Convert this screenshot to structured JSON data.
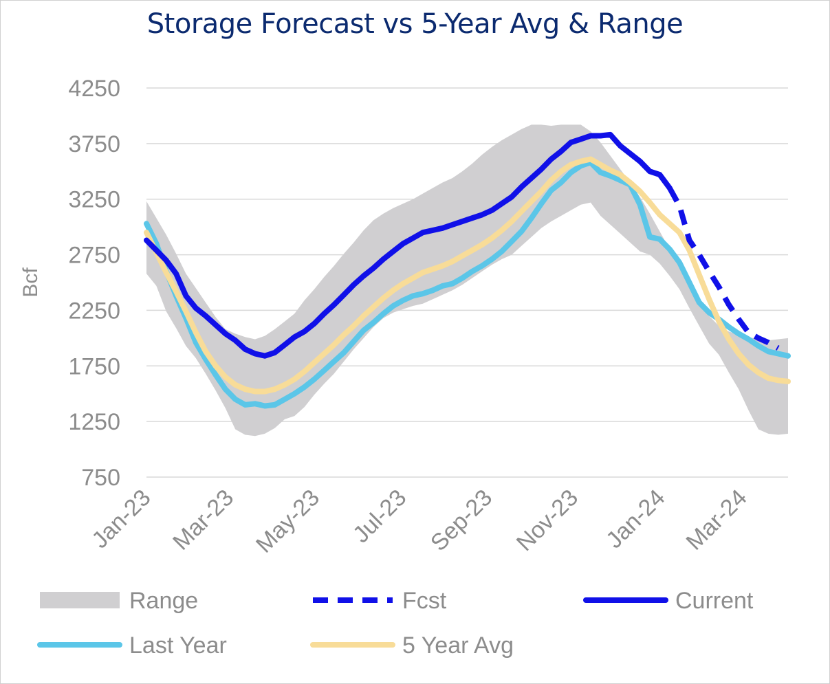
{
  "chart_data": {
    "type": "line",
    "title": "Storage Forecast vs 5-Year Avg & Range",
    "xlabel": "",
    "ylabel": "Bcf",
    "ylim": [
      750,
      4250
    ],
    "yticks": [
      750,
      1250,
      1750,
      2250,
      2750,
      3250,
      3750,
      4250
    ],
    "x_range": [
      0,
      65
    ],
    "x_unit": "weeks since Jan-23",
    "xticks": [
      {
        "label": "Jan-23",
        "x": 0
      },
      {
        "label": "Mar-23",
        "x": 8.4
      },
      {
        "label": "May-23",
        "x": 17.1
      },
      {
        "label": "Jul-23",
        "x": 25.9
      },
      {
        "label": "Sep-23",
        "x": 34.6
      },
      {
        "label": "Nov-23",
        "x": 43.3
      },
      {
        "label": "Jan-24",
        "x": 52.1
      },
      {
        "label": "Mar-24",
        "x": 60.4
      }
    ],
    "grid": true,
    "colors": {
      "range": "#d0cfd1",
      "fcst": "#1010e8",
      "current": "#1010e8",
      "last_year": "#5bc6e8",
      "avg5": "#f8dc98"
    },
    "range": {
      "name": "Range",
      "x": [
        0,
        1,
        2,
        3,
        4,
        5,
        6,
        7,
        8,
        9,
        10,
        11,
        12,
        13,
        14,
        15,
        16,
        17,
        18,
        19,
        20,
        21,
        22,
        23,
        24,
        25,
        26,
        27,
        28,
        29,
        30,
        31,
        32,
        33,
        34,
        35,
        36,
        37,
        38,
        39,
        40,
        41,
        42,
        43,
        44,
        45,
        46,
        47,
        48,
        49,
        50,
        51,
        52,
        53,
        54,
        55,
        56,
        57,
        58,
        59,
        60,
        61,
        62,
        63,
        64,
        65
      ],
      "high": [
        3230,
        3080,
        2930,
        2760,
        2580,
        2450,
        2320,
        2190,
        2080,
        2040,
        2010,
        1990,
        2020,
        2080,
        2150,
        2220,
        2340,
        2440,
        2550,
        2650,
        2760,
        2860,
        2970,
        3060,
        3120,
        3170,
        3210,
        3250,
        3300,
        3350,
        3400,
        3440,
        3500,
        3570,
        3650,
        3720,
        3780,
        3830,
        3880,
        3920,
        3920,
        3910,
        3920,
        3920,
        3920,
        3860,
        3760,
        3640,
        3520,
        3400,
        3270,
        3120,
        2960,
        2800,
        2640,
        2480,
        2330,
        2200,
        2110,
        2060,
        2030,
        2010,
        1990,
        1980,
        1990,
        2000
      ],
      "low": [
        2580,
        2470,
        2240,
        2090,
        1930,
        1820,
        1680,
        1530,
        1370,
        1180,
        1130,
        1120,
        1140,
        1190,
        1270,
        1300,
        1380,
        1490,
        1590,
        1680,
        1790,
        1900,
        2000,
        2100,
        2180,
        2230,
        2260,
        2290,
        2310,
        2350,
        2390,
        2430,
        2480,
        2540,
        2600,
        2660,
        2710,
        2750,
        2830,
        2910,
        2990,
        3050,
        3100,
        3150,
        3200,
        3220,
        3100,
        3020,
        2940,
        2860,
        2780,
        2750,
        2670,
        2560,
        2440,
        2270,
        2110,
        1950,
        1850,
        1690,
        1540,
        1350,
        1180,
        1140,
        1130,
        1140
      ]
    },
    "series": [
      {
        "name": "Current",
        "x": [
          0,
          1,
          2,
          3,
          4,
          5,
          6,
          7,
          8,
          9,
          10,
          11,
          12,
          13,
          14,
          15,
          16,
          17,
          18,
          19,
          20,
          21,
          22,
          23,
          24,
          25,
          26,
          27,
          28,
          29,
          30,
          31,
          32,
          33,
          34,
          35,
          36,
          37,
          38,
          39,
          40,
          41,
          42,
          43,
          44,
          45,
          46,
          47,
          48,
          49,
          50,
          51,
          52,
          53
        ],
        "values": [
          2880,
          2790,
          2700,
          2580,
          2380,
          2270,
          2200,
          2120,
          2040,
          1980,
          1900,
          1860,
          1840,
          1870,
          1940,
          2010,
          2060,
          2130,
          2220,
          2300,
          2390,
          2480,
          2560,
          2630,
          2710,
          2780,
          2850,
          2900,
          2950,
          2970,
          2990,
          3020,
          3050,
          3080,
          3110,
          3150,
          3210,
          3270,
          3360,
          3440,
          3520,
          3610,
          3680,
          3760,
          3790,
          3820,
          3820,
          3830,
          3730,
          3660,
          3590,
          3500,
          3470,
          3350
        ]
      },
      {
        "name": "Fcst",
        "x": [
          53,
          54,
          55,
          56,
          57,
          58,
          59,
          60,
          61,
          62,
          63,
          64
        ],
        "values": [
          3350,
          3190,
          2880,
          2750,
          2600,
          2460,
          2300,
          2170,
          2050,
          2000,
          1960,
          1910
        ]
      },
      {
        "name": "Last Year",
        "x": [
          0,
          1,
          2,
          3,
          4,
          5,
          6,
          7,
          8,
          9,
          10,
          11,
          12,
          13,
          14,
          15,
          16,
          17,
          18,
          19,
          20,
          21,
          22,
          23,
          24,
          25,
          26,
          27,
          28,
          29,
          30,
          31,
          32,
          33,
          34,
          35,
          36,
          37,
          38,
          39,
          40,
          41,
          42,
          43,
          44,
          45,
          46,
          47,
          48,
          49,
          50,
          51,
          52,
          53,
          54,
          55,
          56,
          57,
          58,
          59,
          60,
          61,
          62,
          63,
          64,
          65
        ],
        "values": [
          3030,
          2850,
          2600,
          2380,
          2180,
          1960,
          1810,
          1670,
          1540,
          1450,
          1400,
          1410,
          1390,
          1400,
          1450,
          1500,
          1560,
          1630,
          1710,
          1790,
          1870,
          1970,
          2070,
          2140,
          2220,
          2290,
          2340,
          2380,
          2400,
          2430,
          2470,
          2490,
          2540,
          2600,
          2650,
          2710,
          2780,
          2870,
          2960,
          3080,
          3210,
          3330,
          3400,
          3490,
          3550,
          3580,
          3490,
          3460,
          3420,
          3380,
          3200,
          2910,
          2890,
          2800,
          2680,
          2500,
          2320,
          2230,
          2170,
          2100,
          2040,
          1990,
          1930,
          1880,
          1860,
          1840
        ]
      },
      {
        "name": "5 Year Avg",
        "x": [
          0,
          1,
          2,
          3,
          4,
          5,
          6,
          7,
          8,
          9,
          10,
          11,
          12,
          13,
          14,
          15,
          16,
          17,
          18,
          19,
          20,
          21,
          22,
          23,
          24,
          25,
          26,
          27,
          28,
          29,
          30,
          31,
          32,
          33,
          34,
          35,
          36,
          37,
          38,
          39,
          40,
          41,
          42,
          43,
          44,
          45,
          46,
          47,
          48,
          49,
          50,
          51,
          52,
          53,
          54,
          55,
          56,
          57,
          58,
          59,
          60,
          61,
          62,
          63,
          64,
          65
        ],
        "values": [
          2950,
          2770,
          2590,
          2420,
          2240,
          2050,
          1880,
          1750,
          1650,
          1580,
          1540,
          1520,
          1520,
          1540,
          1580,
          1630,
          1700,
          1780,
          1860,
          1940,
          2030,
          2110,
          2200,
          2280,
          2360,
          2430,
          2490,
          2540,
          2590,
          2620,
          2650,
          2690,
          2740,
          2790,
          2840,
          2900,
          2970,
          3050,
          3140,
          3230,
          3320,
          3420,
          3500,
          3560,
          3590,
          3610,
          3560,
          3510,
          3470,
          3400,
          3320,
          3220,
          3110,
          3030,
          2950,
          2790,
          2570,
          2350,
          2150,
          1990,
          1860,
          1760,
          1690,
          1640,
          1620,
          1610
        ]
      }
    ],
    "legend": {
      "placement": "bottom",
      "items": [
        {
          "key": "range",
          "label": "Range",
          "style": "band"
        },
        {
          "key": "fcst",
          "label": "Fcst",
          "style": "dashed"
        },
        {
          "key": "current",
          "label": "Current",
          "style": "solid"
        },
        {
          "key": "last_year",
          "label": "Last Year",
          "style": "solid"
        },
        {
          "key": "avg5",
          "label": "5 Year Avg",
          "style": "solid"
        }
      ]
    }
  }
}
